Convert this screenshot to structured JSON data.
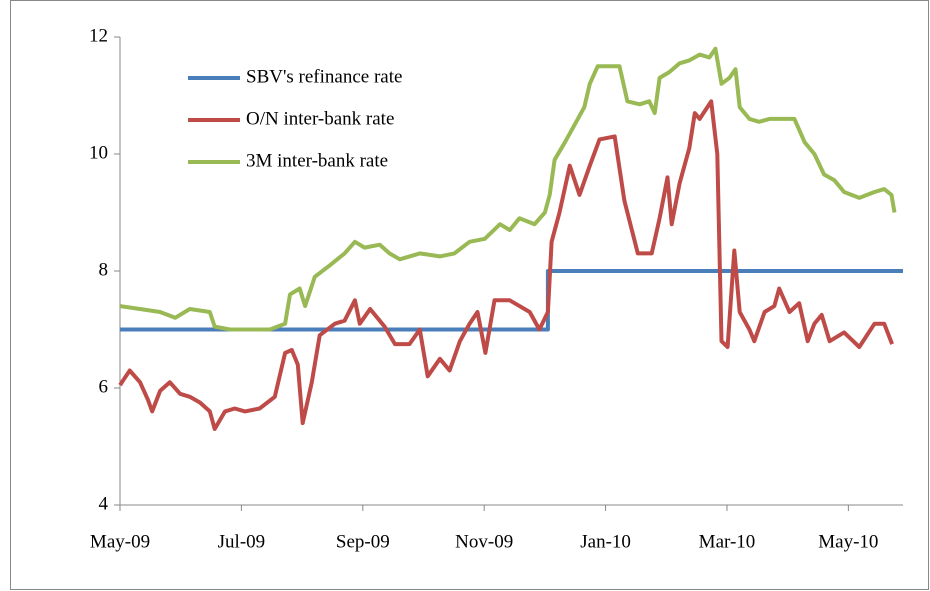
{
  "chart_data": {
    "type": "line",
    "xlim": [
      0,
      12.9
    ],
    "ylim": [
      4,
      12
    ],
    "yticks": [
      4,
      6,
      8,
      10,
      12
    ],
    "xticks": [
      {
        "value": 0,
        "label": "May-09"
      },
      {
        "value": 2,
        "label": "Jul-09"
      },
      {
        "value": 4,
        "label": "Sep-09"
      },
      {
        "value": 6,
        "label": "Nov-09"
      },
      {
        "value": 8,
        "label": "Jan-10"
      },
      {
        "value": 10,
        "label": "Mar-10"
      },
      {
        "value": 12,
        "label": "May-10"
      }
    ],
    "legend": "upper left",
    "series": [
      {
        "name": "SBV's refinance rate",
        "color": "#4a7ebb",
        "x": [
          0,
          7.05,
          7.05,
          12.9
        ],
        "values": [
          7,
          7,
          8,
          8
        ]
      },
      {
        "name": "O/N inter-bank rate",
        "color": "#be4b48",
        "x": [
          0,
          0.16,
          0.33,
          0.46,
          0.53,
          0.66,
          0.82,
          0.99,
          1.15,
          1.32,
          1.48,
          1.56,
          1.73,
          1.89,
          2.06,
          2.3,
          2.55,
          2.72,
          2.83,
          2.93,
          3.01,
          3.16,
          3.29,
          3.54,
          3.7,
          3.87,
          3.95,
          4.12,
          4.36,
          4.53,
          4.77,
          4.94,
          5.07,
          5.27,
          5.43,
          5.6,
          5.76,
          5.89,
          6.02,
          6.17,
          6.42,
          6.75,
          6.91,
          7.05,
          7.11,
          7.24,
          7.41,
          7.57,
          7.74,
          7.9,
          8.15,
          8.31,
          8.53,
          8.76,
          8.89,
          9.02,
          9.09,
          9.22,
          9.38,
          9.47,
          9.55,
          9.74,
          9.84,
          9.91,
          10.01,
          10.12,
          10.21,
          10.37,
          10.45,
          10.62,
          10.78,
          10.86,
          11.03,
          11.19,
          11.33,
          11.44,
          11.56,
          11.69,
          11.93,
          12.18,
          12.43,
          12.59,
          12.72
        ],
        "values": [
          6.05,
          6.3,
          6.1,
          5.8,
          5.6,
          5.95,
          6.1,
          5.9,
          5.85,
          5.75,
          5.6,
          5.3,
          5.6,
          5.65,
          5.6,
          5.65,
          5.85,
          6.6,
          6.65,
          6.4,
          5.4,
          6.1,
          6.9,
          7.1,
          7.15,
          7.5,
          7.1,
          7.35,
          7.05,
          6.75,
          6.75,
          7.0,
          6.2,
          6.5,
          6.3,
          6.8,
          7.1,
          7.3,
          6.6,
          7.5,
          7.5,
          7.3,
          7.0,
          7.3,
          8.5,
          9.0,
          9.8,
          9.3,
          9.8,
          10.25,
          10.3,
          9.2,
          8.3,
          8.3,
          8.9,
          9.6,
          8.8,
          9.5,
          10.1,
          10.7,
          10.6,
          10.9,
          10.0,
          6.8,
          6.7,
          8.35,
          7.3,
          7.0,
          6.8,
          7.3,
          7.4,
          7.7,
          7.3,
          7.45,
          6.8,
          7.1,
          7.25,
          6.8,
          6.95,
          6.7,
          7.1,
          7.1,
          6.75
        ]
      },
      {
        "name": "3M inter-bank rate",
        "color": "#98b954",
        "x": [
          0,
          0.33,
          0.66,
          0.91,
          1.15,
          1.48,
          1.56,
          1.81,
          2.14,
          2.47,
          2.72,
          2.8,
          2.96,
          3.05,
          3.21,
          3.46,
          3.7,
          3.87,
          4.03,
          4.28,
          4.44,
          4.61,
          4.94,
          5.27,
          5.51,
          5.76,
          6.01,
          6.26,
          6.42,
          6.58,
          6.83,
          7.0,
          7.08,
          7.16,
          7.33,
          7.49,
          7.65,
          7.74,
          7.87,
          7.98,
          8.23,
          8.36,
          8.56,
          8.72,
          8.81,
          8.89,
          9.05,
          9.22,
          9.38,
          9.55,
          9.71,
          9.81,
          9.91,
          10.04,
          10.14,
          10.21,
          10.37,
          10.53,
          10.7,
          10.95,
          11.11,
          11.28,
          11.44,
          11.6,
          11.77,
          11.93,
          12.18,
          12.43,
          12.59,
          12.71,
          12.76
        ],
        "values": [
          7.4,
          7.35,
          7.3,
          7.2,
          7.35,
          7.3,
          7.05,
          7.0,
          7.0,
          7.0,
          7.1,
          7.6,
          7.7,
          7.4,
          7.9,
          8.1,
          8.3,
          8.5,
          8.4,
          8.45,
          8.3,
          8.2,
          8.3,
          8.25,
          8.3,
          8.5,
          8.55,
          8.8,
          8.7,
          8.9,
          8.8,
          9.0,
          9.3,
          9.9,
          10.2,
          10.5,
          10.8,
          11.2,
          11.5,
          11.5,
          11.5,
          10.9,
          10.85,
          10.9,
          10.7,
          11.3,
          11.4,
          11.55,
          11.6,
          11.7,
          11.65,
          11.8,
          11.2,
          11.3,
          11.45,
          10.8,
          10.6,
          10.55,
          10.6,
          10.6,
          10.6,
          10.2,
          10.0,
          9.65,
          9.55,
          9.35,
          9.25,
          9.35,
          9.4,
          9.3,
          9.0
        ]
      }
    ]
  }
}
